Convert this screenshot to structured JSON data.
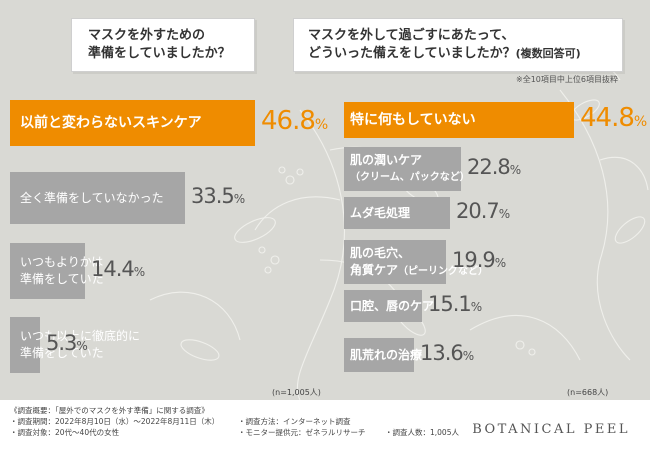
{
  "question_left": {
    "line1": "マスクを外すための",
    "line2": "準備をしていましたか？"
  },
  "question_right": {
    "line1": "マスクを外して過ごすにあたって、",
    "line2": "どういった備えをしていましたか？",
    "line2_suffix": "(複数回答可)"
  },
  "note_right": "※全10項目中上位6項目抜粋",
  "colors": {
    "highlight": "#ef8c00",
    "bar": "#a6a6a6",
    "background": "#d9d9d4",
    "text_dark": "#3a3a3a",
    "footer": "#ffffff"
  },
  "chart_data": [
    {
      "type": "bar",
      "orientation": "horizontal",
      "title": "マスクを外すための準備をしていましたか？",
      "categories": [
        "以前と変わらないスキンケア",
        "全く準備をしていなかった",
        "いつもよりかは準備をしていた",
        "いつも以上に徹底的に準備をしていた"
      ],
      "values": [
        46.8,
        33.5,
        14.4,
        5.3
      ],
      "unit": "%",
      "sample_size": "(n=1,005人)"
    },
    {
      "type": "bar",
      "orientation": "horizontal",
      "title": "マスクを外して過ごすにあたって、どういった備えをしていましたか？(複数回答可)",
      "categories": [
        "特に何もしていない",
        "肌の潤いケア（クリーム、パックなど）",
        "ムダ毛処理",
        "肌の毛穴、角質ケア（ピーリングなど）",
        "口腔、唇のケア",
        "肌荒れの治療"
      ],
      "values": [
        44.8,
        22.8,
        20.7,
        19.9,
        15.1,
        13.6
      ],
      "unit": "%",
      "sample_size": "(n=668人)",
      "note": "※全10項目中上位6項目抜粋"
    }
  ],
  "left_labels": [
    {
      "l1": "以前と変わらないスキンケア",
      "l2": ""
    },
    {
      "l1": "全く準備をしていなかった",
      "l2": ""
    },
    {
      "l1": "いつもよりかは",
      "l2": "準備をしていた"
    },
    {
      "l1": "いつも以上に徹底的に",
      "l2": "準備をしていた"
    }
  ],
  "right_labels": [
    {
      "l1": "特に何もしていない",
      "l2": "",
      "l2sub": ""
    },
    {
      "l1": "肌の潤いケア",
      "l2": "（クリーム、パックなど）",
      "l2sub": ""
    },
    {
      "l1": "ムダ毛処理",
      "l2": "",
      "l2sub": ""
    },
    {
      "l1": "肌の毛穴、",
      "l2": "角質ケア",
      "l2sub": "（ピーリングなど）"
    },
    {
      "l1": "口腔、唇のケア",
      "l2": "",
      "l2sub": ""
    },
    {
      "l1": "肌荒れの治療",
      "l2": "",
      "l2sub": ""
    }
  ],
  "value_text": {
    "left": [
      {
        "num": "46.8",
        "pct": "%"
      },
      {
        "num": "33.5",
        "pct": "%"
      },
      {
        "num": "14.4",
        "pct": "%"
      },
      {
        "num": "5.3",
        "pct": "%"
      }
    ],
    "right": [
      {
        "num": "44.8",
        "pct": "%"
      },
      {
        "num": "22.8",
        "pct": "%"
      },
      {
        "num": "20.7",
        "pct": "%"
      },
      {
        "num": "19.9",
        "pct": "%"
      },
      {
        "num": "15.1",
        "pct": "%"
      },
      {
        "num": "13.6",
        "pct": "%"
      }
    ]
  },
  "footer": {
    "survey_title": "《調査概要：「屋外でのマスクを外す準備」に関する調査》",
    "period": "・調査期間：2022年8月10日（水）〜2022年8月11日（木）",
    "method": "・調査方法：インターネット調査",
    "target": "・調査対象：20代〜40代の女性",
    "provider": "・モニター提供元：ゼネラルリサーチ",
    "respondents": "・調査人数：1,005人",
    "brand": "BOTANICAL PEEL"
  }
}
